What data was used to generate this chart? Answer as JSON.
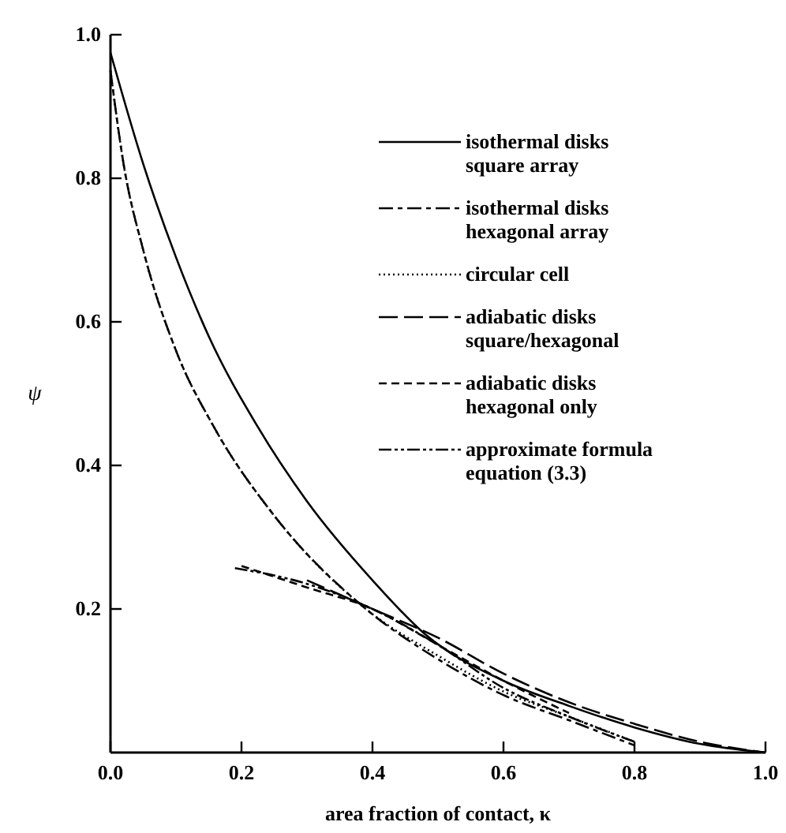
{
  "chart_data": {
    "type": "line",
    "xlabel": "area fraction of contact, κ",
    "ylabel": "ψ",
    "xlim": [
      0,
      1
    ],
    "ylim": [
      0,
      1
    ],
    "xticks": [
      {
        "value": 0,
        "label": "0.0"
      },
      {
        "value": 0.2,
        "label": "0.2"
      },
      {
        "value": 0.4,
        "label": "0.4"
      },
      {
        "value": 0.6,
        "label": "0.6"
      },
      {
        "value": 0.8,
        "label": "0.8"
      },
      {
        "value": 1,
        "label": "1.0"
      }
    ],
    "yticks": [
      {
        "value": 0.2,
        "label": "0.2"
      },
      {
        "value": 0.4,
        "label": "0.4"
      },
      {
        "value": 0.6,
        "label": "0.6"
      },
      {
        "value": 0.8,
        "label": "0.8"
      },
      {
        "value": 1,
        "label": "1.0"
      }
    ],
    "legend": "top right",
    "grid": false,
    "series": [
      {
        "name": "isothermal disks\nsquare array",
        "color": "#000000",
        "line_style": "solid",
        "x": [
          0,
          0.05,
          0.1,
          0.15,
          0.224,
          0.3,
          0.4,
          0.48,
          0.6,
          0.7,
          0.8,
          0.9,
          1
        ],
        "values": [
          0.975,
          0.82,
          0.69,
          0.58,
          0.455,
          0.35,
          0.24,
          0.165,
          0.1,
          0.065,
          0.035,
          0.012,
          0
        ]
      },
      {
        "name": "isothermal disks\nhexagonal array",
        "color": "#000000",
        "line_style": "dashdot",
        "x": [
          0,
          0.02,
          0.05,
          0.1,
          0.157,
          0.25,
          0.39,
          0.5,
          0.6,
          0.7,
          0.8
        ],
        "values": [
          0.95,
          0.82,
          0.7,
          0.56,
          0.455,
          0.33,
          0.2,
          0.13,
          0.08,
          0.045,
          0.01
        ]
      },
      {
        "name": "circular cell",
        "color": "#000000",
        "line_style": "dotted",
        "x": [
          0,
          0.02,
          0.05,
          0.1,
          0.157,
          0.25,
          0.39,
          0.5,
          0.6,
          0.7,
          0.8
        ],
        "values": [
          0.95,
          0.82,
          0.7,
          0.56,
          0.455,
          0.33,
          0.2,
          0.135,
          0.085,
          0.05,
          0.015
        ]
      },
      {
        "name": "adiabatic disks\nsquare/hexagonal",
        "color": "#000000",
        "line_style": "longdash",
        "x": [
          0.3,
          0.4,
          0.5,
          0.6,
          0.7,
          0.8,
          0.9,
          1
        ],
        "values": [
          0.24,
          0.2,
          0.16,
          0.11,
          0.07,
          0.04,
          0.015,
          0
        ]
      },
      {
        "name": "adiabatic disks\nhexagonal only",
        "color": "#000000",
        "line_style": "dashed",
        "x": [
          0.2,
          0.3,
          0.4,
          0.5,
          0.6,
          0.7
        ],
        "values": [
          0.26,
          0.23,
          0.2,
          0.15,
          0.1,
          0.055
        ]
      },
      {
        "name": "approximate formula\nequation (3.3)",
        "color": "#000000",
        "line_style": "dashdotdot",
        "x": [
          0.19,
          0.3,
          0.4,
          0.5,
          0.6,
          0.7,
          0.8
        ],
        "values": [
          0.257,
          0.235,
          0.2,
          0.15,
          0.09,
          0.05,
          0.015
        ]
      }
    ]
  }
}
